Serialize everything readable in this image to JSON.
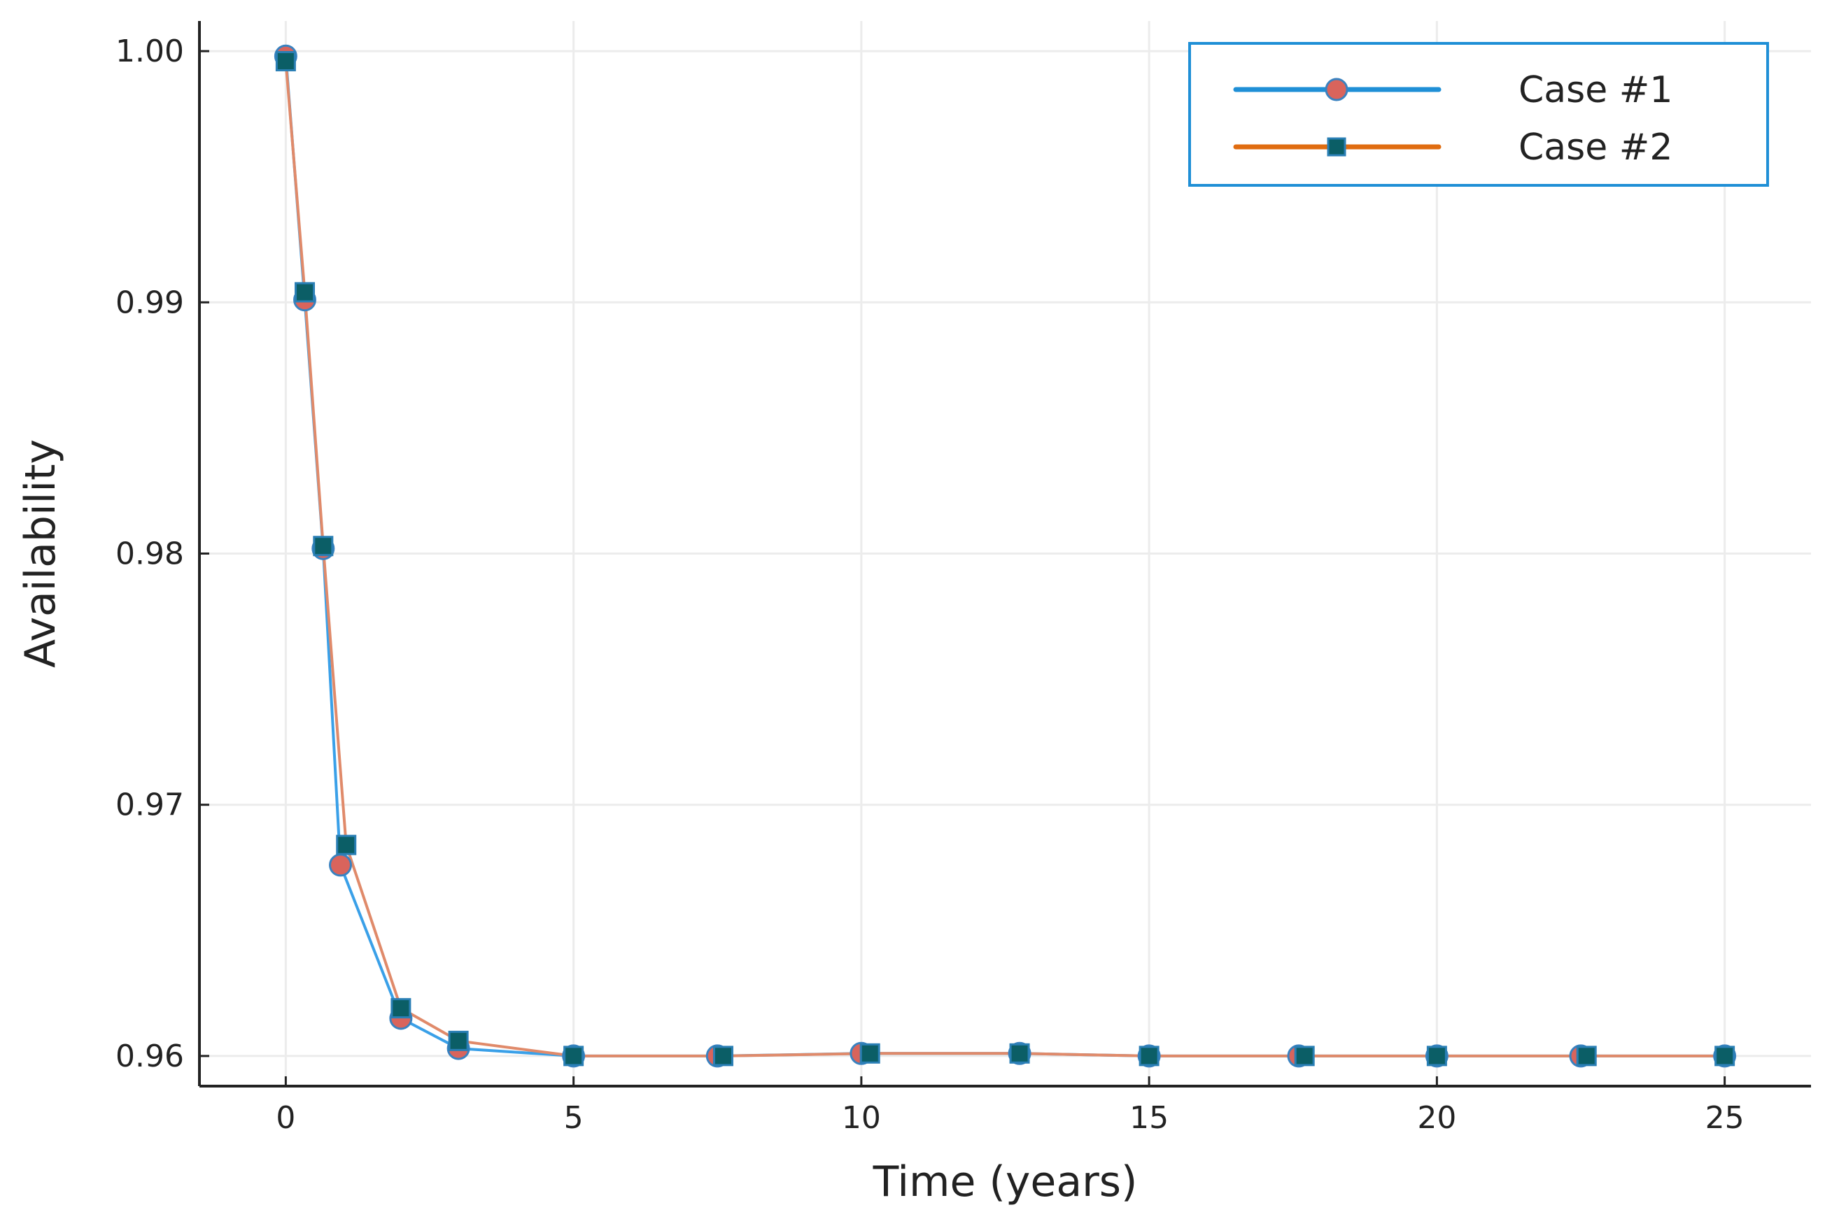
{
  "chart_data": {
    "type": "line",
    "title": "",
    "xlabel": "Time (years)",
    "ylabel": "Availability",
    "xlim": [
      -1.5,
      26.5
    ],
    "ylim": [
      0.9588,
      1.0012
    ],
    "xticks": [
      0,
      5,
      10,
      15,
      20,
      25
    ],
    "xtick_labels": [
      "0",
      "5",
      "10",
      "15",
      "20",
      "25"
    ],
    "yticks": [
      0.96,
      0.97,
      0.98,
      0.99,
      1.0
    ],
    "ytick_labels": [
      "0.96",
      "0.97",
      "0.98",
      "0.99",
      "1.00"
    ],
    "grid": true,
    "legend_position": "top-right",
    "series": [
      {
        "name": "Case #1",
        "line_color": "#3aa0e8",
        "legend_line_color": "#1f8fd6",
        "marker": "circle",
        "marker_color": "#d9645c",
        "marker_edge": "#3a82c0",
        "x": [
          0,
          0.33,
          0.65,
          0.95,
          2.0,
          3.0,
          5.0,
          7.5,
          10.0,
          12.75,
          15.0,
          17.6,
          20.0,
          22.5,
          25.0
        ],
        "y": [
          0.9998,
          0.9901,
          0.9802,
          0.9676,
          0.9615,
          0.9603,
          0.96,
          0.96,
          0.9601,
          0.9601,
          0.96,
          0.96,
          0.96,
          0.96,
          0.96
        ]
      },
      {
        "name": "Case #2",
        "line_color": "#e08a6a",
        "legend_line_color": "#e06c10",
        "marker": "square",
        "marker_color": "#0b5e66",
        "marker_edge": "#2a7fb5",
        "x": [
          0,
          0.33,
          0.65,
          1.05,
          2.0,
          3.0,
          5.0,
          7.6,
          10.15,
          12.75,
          15.0,
          17.7,
          20.0,
          22.6,
          25.0
        ],
        "y": [
          0.9996,
          0.9904,
          0.9803,
          0.9684,
          0.9619,
          0.9606,
          0.96,
          0.96,
          0.9601,
          0.9601,
          0.96,
          0.96,
          0.96,
          0.96,
          0.96
        ]
      }
    ],
    "colors": {
      "grid": "#ececec",
      "axis": "#222222",
      "legend_border": "#1f8fd6"
    }
  }
}
